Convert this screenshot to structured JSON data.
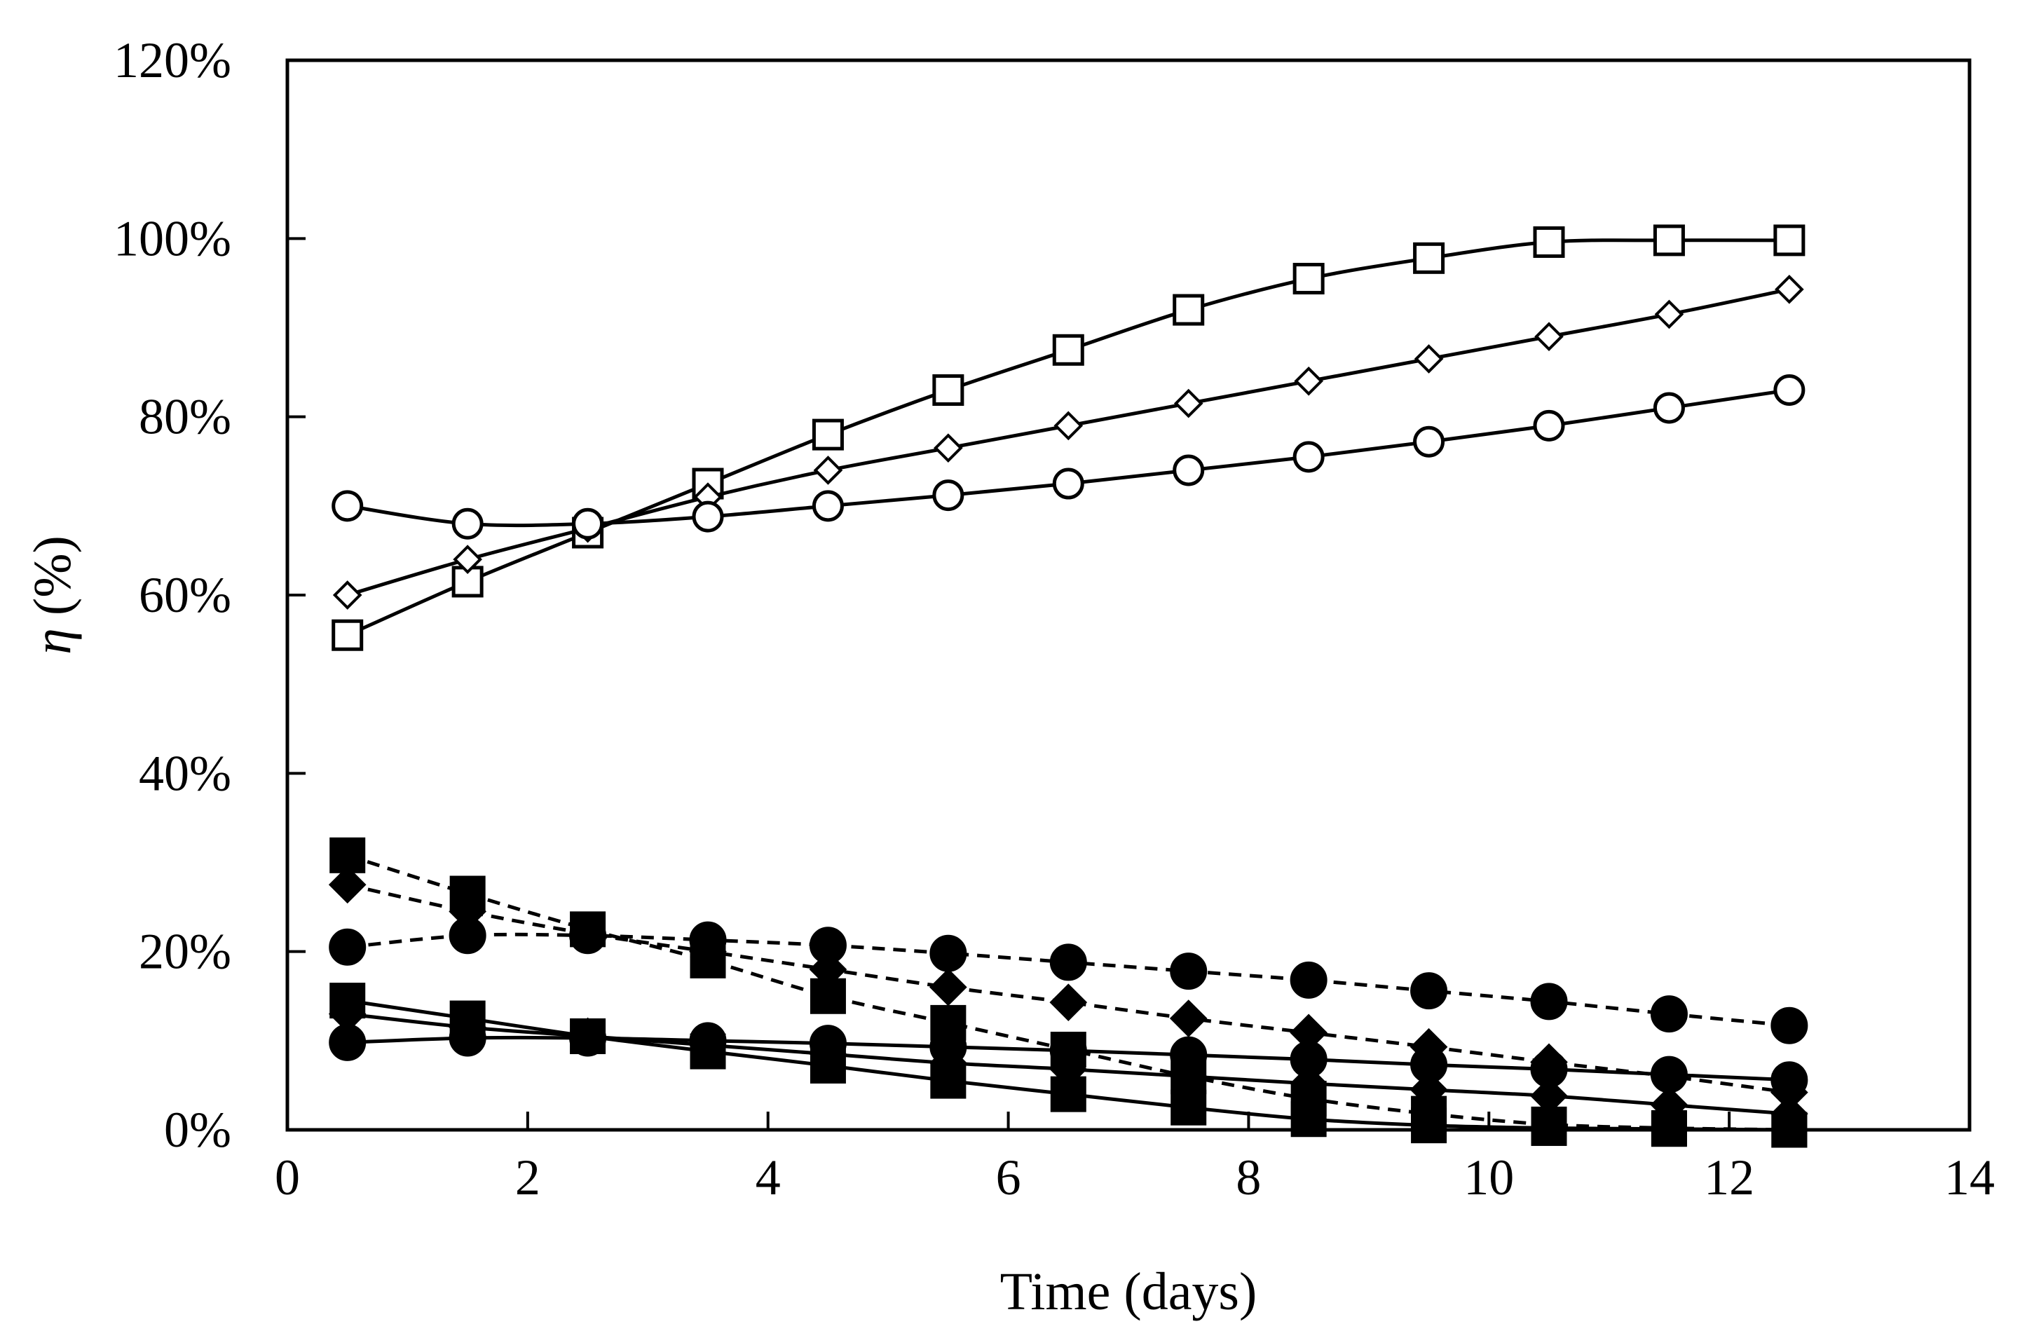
{
  "chart_data": {
    "type": "line",
    "title": "",
    "xlabel": "Time (days)",
    "ylabel_symbol": "η",
    "ylabel_unit": "(%)",
    "xlim": [
      0,
      14
    ],
    "ylim": [
      0,
      120
    ],
    "x_ticks": [
      0,
      2,
      4,
      6,
      8,
      10,
      12,
      14
    ],
    "x_tick_labels": [
      "0",
      "2",
      "4",
      "6",
      "8",
      "10",
      "12",
      "14"
    ],
    "y_ticks": [
      0,
      20,
      40,
      60,
      80,
      100,
      120
    ],
    "y_tick_labels": [
      "0%",
      "20%",
      "40%",
      "60%",
      "80%",
      "100%",
      "120%"
    ],
    "grid": false,
    "legend": "none",
    "x": [
      0.5,
      1.5,
      2.5,
      3.5,
      4.5,
      5.5,
      6.5,
      7.5,
      8.5,
      9.5,
      10.5,
      11.5,
      12.5
    ],
    "series": [
      {
        "name": "open-square",
        "marker": "square",
        "filled": false,
        "dash": "solid",
        "values": [
          55.5,
          61.5,
          67.0,
          72.5,
          78.0,
          83.0,
          87.5,
          92.0,
          95.5,
          97.8,
          99.6,
          99.8,
          99.8
        ]
      },
      {
        "name": "open-diamond",
        "marker": "diamond",
        "filled": false,
        "dash": "solid",
        "values": [
          60.0,
          64.0,
          67.5,
          71.0,
          74.0,
          76.5,
          79.0,
          81.5,
          84.0,
          86.5,
          89.0,
          91.5,
          94.3
        ]
      },
      {
        "name": "open-circle",
        "marker": "circle",
        "filled": false,
        "dash": "solid",
        "values": [
          70.0,
          68.0,
          68.0,
          68.8,
          70.0,
          71.2,
          72.5,
          74.0,
          75.5,
          77.2,
          79.0,
          81.0,
          83.0
        ]
      },
      {
        "name": "filled-square-dashed",
        "marker": "square",
        "filled": true,
        "dash": "dashed",
        "values": [
          30.8,
          26.5,
          22.5,
          19.0,
          15.0,
          12.0,
          9.0,
          6.0,
          3.5,
          1.8,
          0.6,
          0.2,
          0.0
        ]
      },
      {
        "name": "filled-diamond-dashed",
        "marker": "diamond",
        "filled": true,
        "dash": "dashed",
        "values": [
          27.5,
          24.5,
          22.0,
          20.0,
          18.0,
          16.0,
          14.3,
          12.5,
          10.9,
          9.3,
          7.6,
          6.0,
          4.2
        ]
      },
      {
        "name": "filled-circle-dashed",
        "marker": "circle",
        "filled": true,
        "dash": "dashed",
        "values": [
          20.5,
          21.8,
          21.8,
          21.3,
          20.7,
          19.8,
          18.8,
          17.8,
          16.8,
          15.6,
          14.4,
          13.0,
          11.7
        ]
      },
      {
        "name": "filled-square-solid",
        "marker": "square",
        "filled": true,
        "dash": "solid",
        "values": [
          14.5,
          12.5,
          10.5,
          8.8,
          7.2,
          5.5,
          4.0,
          2.5,
          1.2,
          0.5,
          0.2,
          0.1,
          0.0
        ]
      },
      {
        "name": "filled-diamond-solid",
        "marker": "diamond",
        "filled": true,
        "dash": "solid",
        "values": [
          13.0,
          11.5,
          10.5,
          9.5,
          8.5,
          7.5,
          6.8,
          6.0,
          5.2,
          4.5,
          3.8,
          2.8,
          1.8
        ]
      },
      {
        "name": "filled-circle-solid",
        "marker": "circle",
        "filled": true,
        "dash": "solid",
        "values": [
          9.8,
          10.3,
          10.3,
          10.0,
          9.7,
          9.3,
          8.9,
          8.4,
          7.9,
          7.3,
          6.8,
          6.2,
          5.6
        ]
      }
    ]
  }
}
